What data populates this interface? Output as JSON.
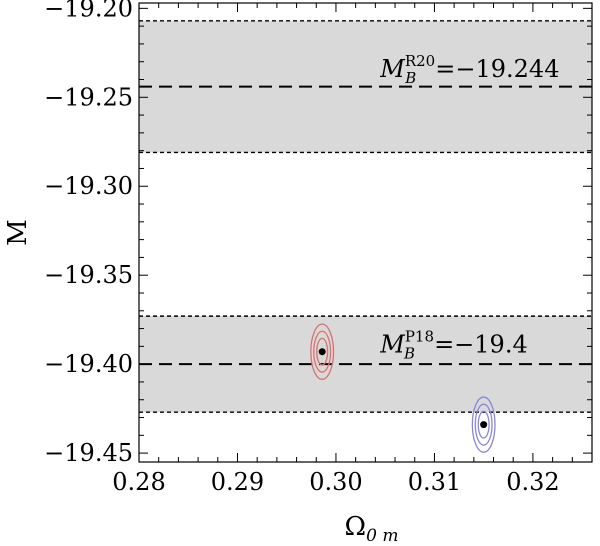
{
  "chart_data": {
    "type": "scatter",
    "xlabel": "Ω",
    "xlabel_sub": "0 m",
    "ylabel": "M",
    "xlim": [
      0.28,
      0.326
    ],
    "ylim": [
      -19.455,
      -19.197
    ],
    "x_ticks": [
      0.28,
      0.29,
      0.3,
      0.31,
      0.32
    ],
    "x_tick_labels": [
      "0.28",
      "0.29",
      "0.30",
      "0.31",
      "0.32"
    ],
    "y_ticks": [
      -19.2,
      -19.25,
      -19.3,
      -19.35,
      -19.4,
      -19.45
    ],
    "y_tick_labels": [
      "−19.20",
      "−19.25",
      "−19.30",
      "−19.35",
      "−19.40",
      "−19.45"
    ],
    "bands": [
      {
        "name": "R20",
        "center": -19.244,
        "lower": -19.281,
        "upper": -19.207,
        "label_main": "M",
        "label_sup": "R20",
        "label_sub": "B",
        "label_value": "=−19.244",
        "label_x": 0.3045,
        "label_y": -19.2385
      },
      {
        "name": "P18",
        "center": -19.4,
        "lower": -19.427,
        "upper": -19.373,
        "label_main": "M",
        "label_sup": "P18",
        "label_sub": "B",
        "label_value": "=−19.4",
        "label_x": 0.3045,
        "label_y": -19.3935
      }
    ],
    "points": [
      {
        "x": 0.2986,
        "y": -19.393,
        "color": "#d9706f",
        "contour_sigma_x": [
          0.00055,
          0.00085,
          0.00115
        ],
        "contour_sigma_y": [
          0.0075,
          0.0115,
          0.0155
        ]
      },
      {
        "x": 0.315,
        "y": -19.434,
        "color": "#8a86d6",
        "contour_sigma_x": [
          0.00055,
          0.00085,
          0.00115
        ],
        "contour_sigma_y": [
          0.0075,
          0.0115,
          0.0155
        ]
      }
    ],
    "colors": {
      "band_fill": "#d9d9d9",
      "axis": "#000000"
    }
  }
}
